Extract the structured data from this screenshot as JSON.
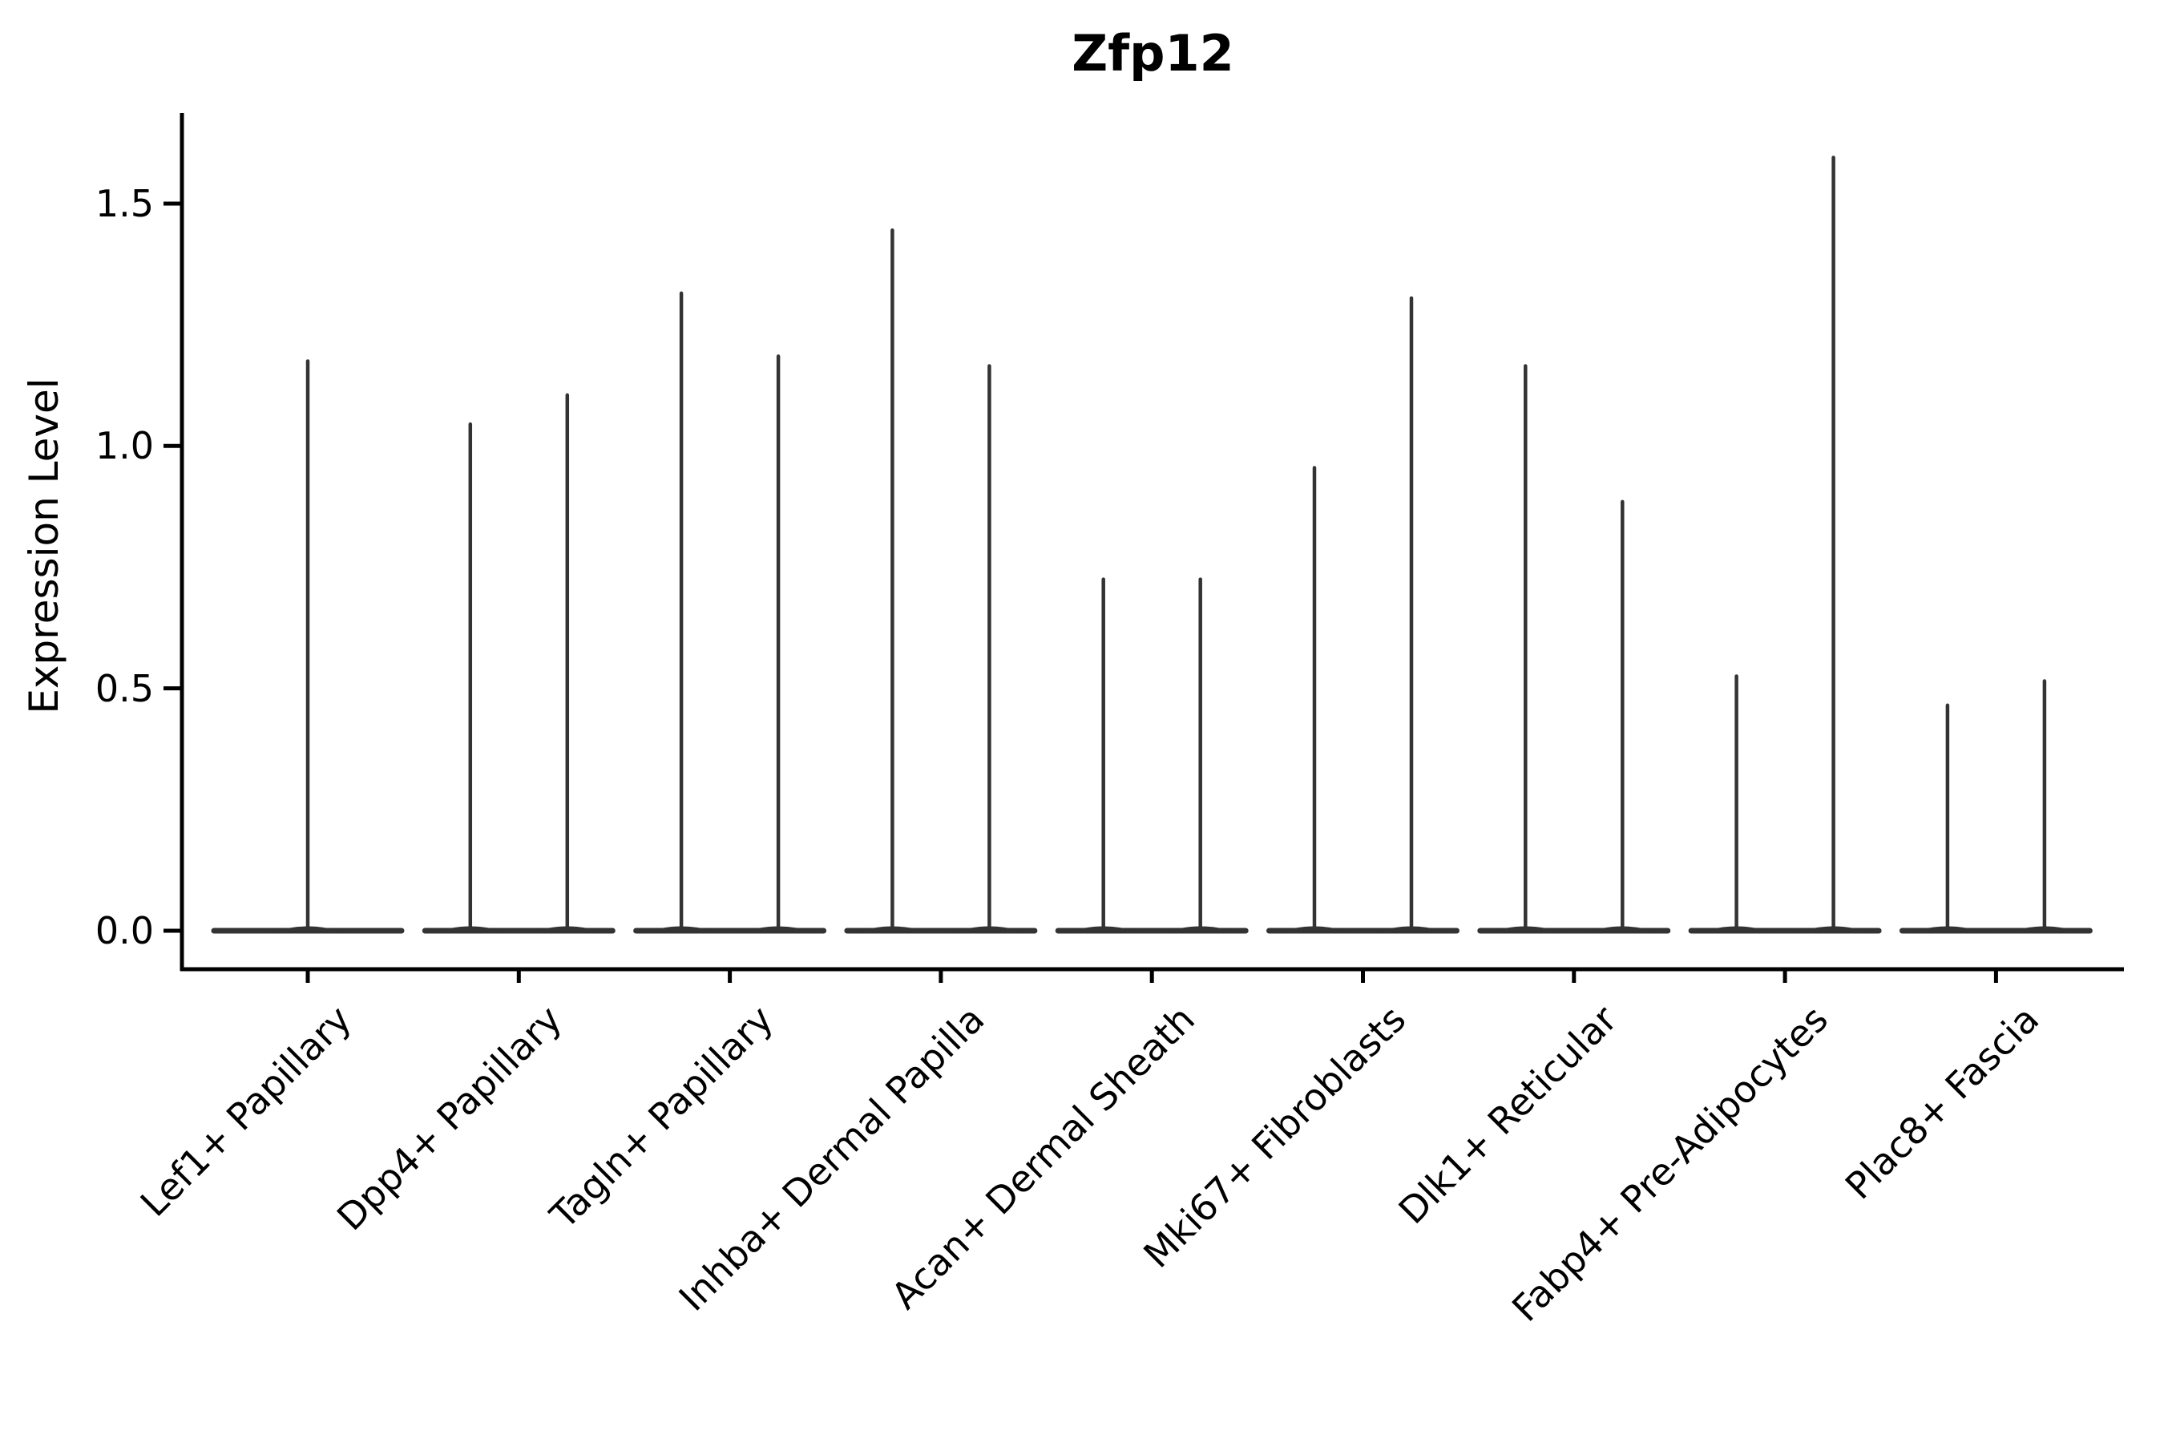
{
  "chart_data": {
    "type": "violin",
    "title": "Zfp12",
    "xlabel": "",
    "ylabel": "Expression Level",
    "yticks": [
      0.0,
      0.5,
      1.0,
      1.5
    ],
    "ylim": [
      0,
      1.69
    ],
    "grid": false,
    "legend": false,
    "description": "Sparse single-cell expression violins: each violin is a flat band at 0 expression with a thin spike rising to the category maximum. Categories 2-9 contain two side-by-side thin violins; category 1 has a single full-width violin.",
    "categories": [
      "Lef1+ Papillary",
      "Dpp4+ Papillary",
      "Tagln+ Papillary",
      "Inhba+ Dermal Papilla",
      "Acan+ Dermal Sheath",
      "Mki67+ Fibroblasts",
      "Dlk1+ Reticular",
      "Fabp4+ Pre-Adipocytes",
      "Plac8+ Fascia"
    ],
    "series": [
      {
        "category": "Lef1+ Papillary",
        "spike_maxima": [
          1.18
        ],
        "baseline_value": 0
      },
      {
        "category": "Dpp4+ Papillary",
        "spike_maxima": [
          1.05,
          1.11
        ],
        "baseline_value": 0
      },
      {
        "category": "Tagln+ Papillary",
        "spike_maxima": [
          1.32,
          1.19
        ],
        "baseline_value": 0
      },
      {
        "category": "Inhba+ Dermal Papilla",
        "spike_maxima": [
          1.45,
          1.17
        ],
        "baseline_value": 0
      },
      {
        "category": "Acan+ Dermal Sheath",
        "spike_maxima": [
          0.73,
          0.73
        ],
        "baseline_value": 0
      },
      {
        "category": "Mki67+ Fibroblasts",
        "spike_maxima": [
          0.96,
          1.31
        ],
        "baseline_value": 0
      },
      {
        "category": "Dlk1+ Reticular",
        "spike_maxima": [
          1.17,
          0.89
        ],
        "baseline_value": 0
      },
      {
        "category": "Fabp4+ Pre-Adipocytes",
        "spike_maxima": [
          0.53,
          1.6
        ],
        "baseline_value": 0
      },
      {
        "category": "Plac8+ Fascia",
        "spike_maxima": [
          0.47,
          0.52
        ],
        "baseline_value": 0
      }
    ],
    "colors": {
      "violin_stroke": "#333333",
      "axis": "#000000",
      "text": "#000000",
      "background": "#ffffff"
    }
  }
}
